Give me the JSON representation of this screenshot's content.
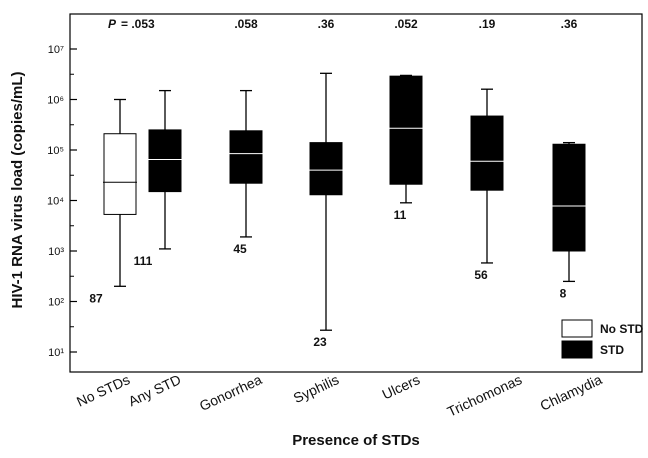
{
  "chart_data": {
    "type": "box",
    "ylabel": "HIV-1 RNA virus load (copies/mL)",
    "xlabel": "Presence of STDs",
    "y_scale": "log",
    "ylim": [
      10,
      100000000
    ],
    "ytick_exponents": [
      1,
      2,
      3,
      4,
      5,
      6,
      7
    ],
    "ytick_labels": [
      "10¹",
      "10²",
      "10³",
      "10⁴",
      "10⁵",
      "10⁶",
      "10⁷"
    ],
    "p_prefix": "P",
    "categories": [
      "No STDs",
      "Any STD",
      "Gonorrhea",
      "Syphilis",
      "Ulcers",
      "Trichomonas",
      "Chlamydia"
    ],
    "p_values": [
      ".053",
      ".058",
      ".36",
      ".052",
      ".19",
      ".36"
    ],
    "boxes": [
      {
        "category": "No STDs",
        "group": "No STD",
        "min": 200,
        "q1": 5300,
        "median": 23000,
        "q3": 210000,
        "max": 1000000,
        "n": "87"
      },
      {
        "category": "Any STD",
        "group": "STD",
        "min": 1100,
        "q1": 15000,
        "median": 65000,
        "q3": 250000,
        "max": 1500000,
        "n": "111"
      },
      {
        "category": "Gonorrhea",
        "group": "STD",
        "min": 1900,
        "q1": 22000,
        "median": 85000,
        "q3": 240000,
        "max": 1500000,
        "n": "45"
      },
      {
        "category": "Syphilis",
        "group": "STD",
        "min": 27,
        "q1": 13000,
        "median": 40000,
        "q3": 140000,
        "max": 3300000,
        "n": "23"
      },
      {
        "category": "Ulcers",
        "group": "STD",
        "min": 9000,
        "q1": 21000,
        "median": 270000,
        "q3": 2900000,
        "max": 3000000,
        "n": "11"
      },
      {
        "category": "Trichomonas",
        "group": "STD",
        "min": 580,
        "q1": 16000,
        "median": 60000,
        "q3": 470000,
        "max": 1600000,
        "n": "56"
      },
      {
        "category": "Chlamydia",
        "group": "STD",
        "min": 250,
        "q1": 1000,
        "median": 7800,
        "q3": 130000,
        "max": 140000,
        "n": "8"
      }
    ],
    "legend": {
      "position": "bottom-right",
      "items": [
        {
          "label": "No STD",
          "fill": "#ffffff"
        },
        {
          "label": "STD",
          "fill": "#000000"
        }
      ]
    }
  }
}
